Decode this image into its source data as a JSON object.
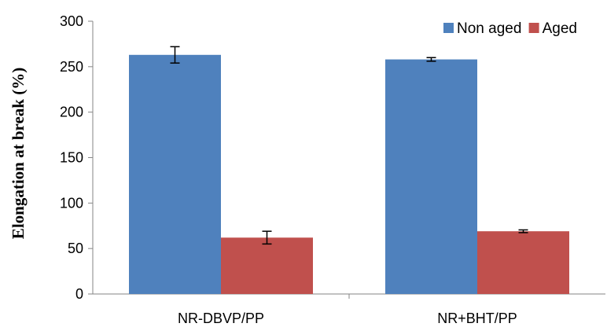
{
  "chart_data": {
    "type": "bar",
    "title": "",
    "xlabel": "",
    "ylabel": "Elongation at break (%)",
    "ylim": [
      0,
      300
    ],
    "yticks": [
      0,
      50,
      100,
      150,
      200,
      250,
      300
    ],
    "categories": [
      "NR-DBVP/PP",
      "NR+BHT/PP"
    ],
    "series": [
      {
        "name": "Non aged",
        "color": "#4f81bd",
        "values": [
          263,
          258
        ],
        "errors": [
          9,
          2
        ]
      },
      {
        "name": "Aged",
        "color": "#c0504d",
        "values": [
          62,
          69
        ],
        "errors": [
          7,
          1.5
        ]
      }
    ],
    "legend_position": "top-right",
    "grid": false
  }
}
